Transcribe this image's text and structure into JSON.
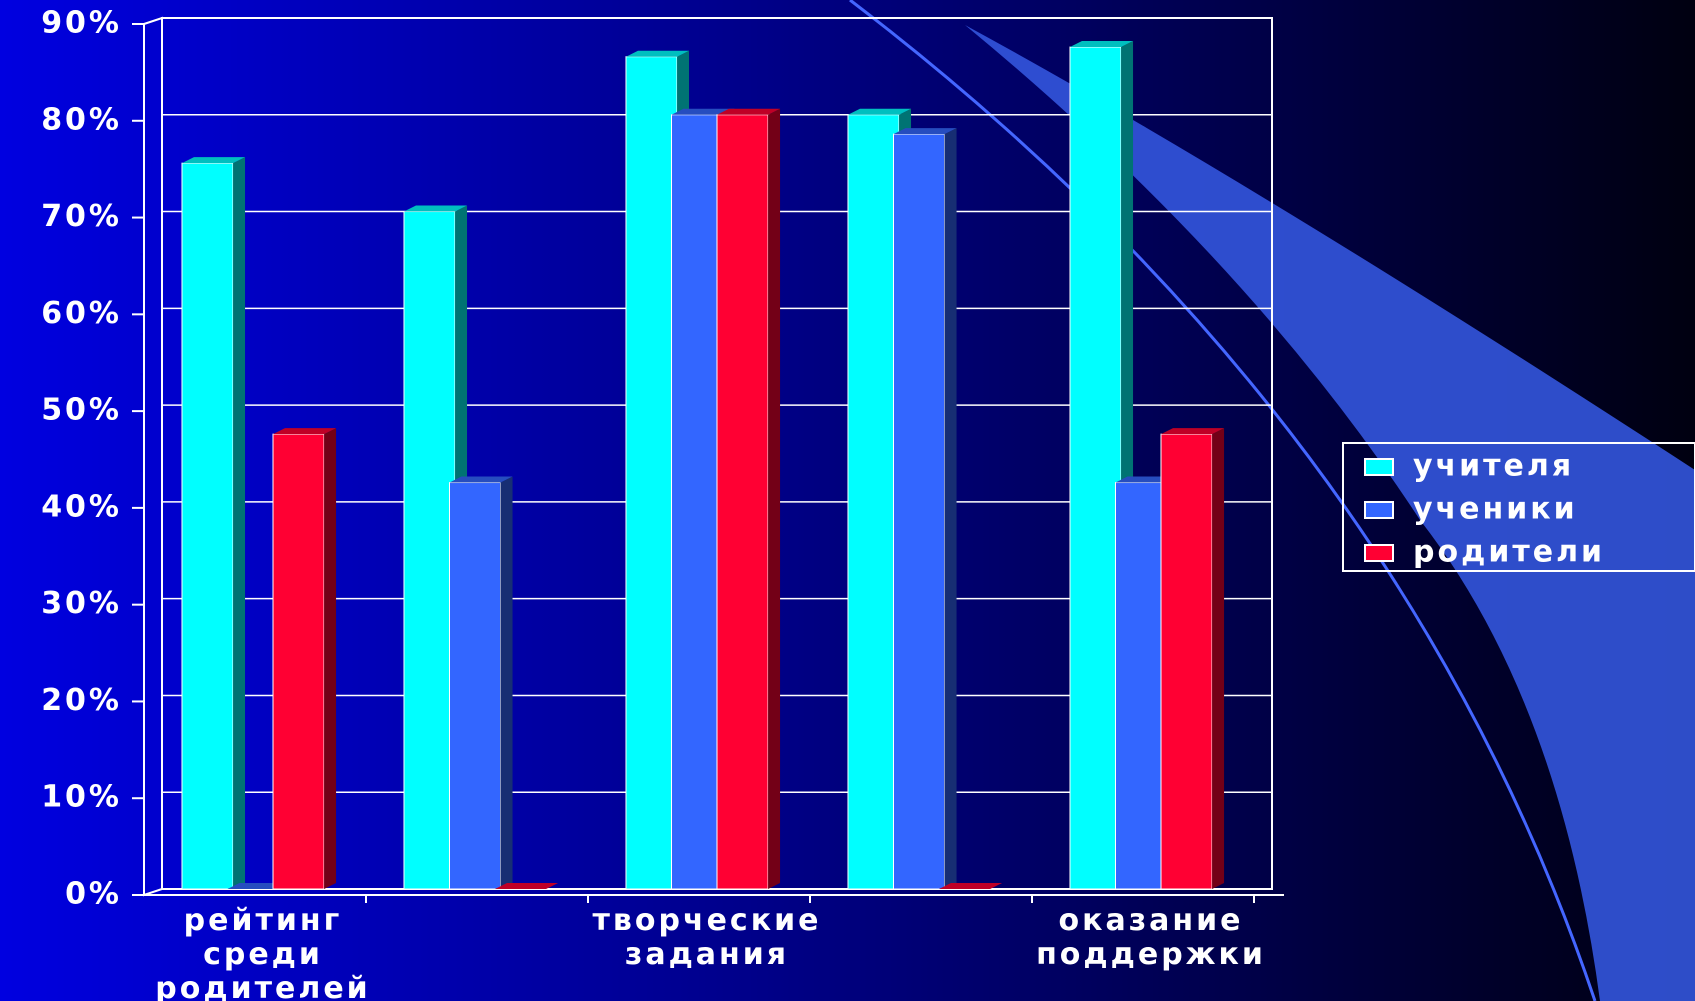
{
  "chart_data": {
    "type": "bar3d",
    "categories": [
      "рейтинг среди родителей",
      null,
      "творческие задания",
      null,
      "оказание поддержки"
    ],
    "series": [
      {
        "name": "учителя",
        "color": "#00ffff",
        "values": [
          75,
          70,
          86,
          80,
          87
        ]
      },
      {
        "name": "ученики",
        "color": "#3366ff",
        "values": [
          0,
          42,
          80,
          78,
          42
        ]
      },
      {
        "name": "родители",
        "color": "#ff0033",
        "values": [
          47,
          0,
          80,
          0,
          47
        ]
      }
    ],
    "ylim": [
      0,
      90
    ],
    "yticks": [
      {
        "value": 0,
        "label": "0%"
      },
      {
        "value": 10,
        "label": "10%"
      },
      {
        "value": 20,
        "label": "20%"
      },
      {
        "value": 30,
        "label": "30%"
      },
      {
        "value": 40,
        "label": "40%"
      },
      {
        "value": 50,
        "label": "50%"
      },
      {
        "value": 60,
        "label": "60%"
      },
      {
        "value": 70,
        "label": "70%"
      },
      {
        "value": 80,
        "label": "80%"
      },
      {
        "value": 90,
        "label": "90%"
      }
    ],
    "grid": true,
    "legend": "right"
  }
}
